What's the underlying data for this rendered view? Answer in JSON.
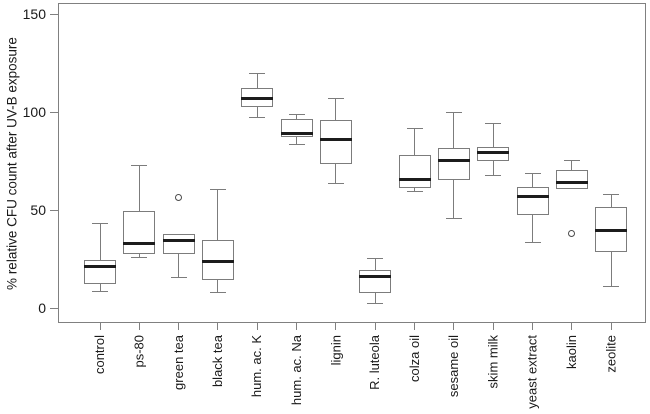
{
  "chart_data": {
    "type": "boxplot",
    "title": "",
    "xlabel": "",
    "ylabel": "% relative CFU count after UV-B exposure",
    "ylim": [
      -7.5,
      156
    ],
    "yticks": [
      0,
      50,
      100,
      150
    ],
    "grid": false,
    "legend": "none",
    "categories": [
      "control",
      "ps-80",
      "green tea",
      "black tea",
      "hum. ac. K",
      "hum. ac. Na",
      "lignin",
      "R. luteola",
      "colza oil",
      "sesame oil",
      "skim milk",
      "yeast extract",
      "kaolin",
      "zeolite"
    ],
    "boxes": [
      {
        "label": "control",
        "whislo": 8.5,
        "q1": 12.5,
        "median": 21.5,
        "q3": 24.5,
        "whishi": 43.5,
        "outliers": []
      },
      {
        "label": "ps-80",
        "whislo": 26,
        "q1": 28,
        "median": 33,
        "q3": 49.5,
        "whishi": 73,
        "outliers": []
      },
      {
        "label": "green tea",
        "whislo": 15.5,
        "q1": 28,
        "median": 34.5,
        "q3": 38,
        "whishi": 38,
        "outliers": [
          56.5
        ]
      },
      {
        "label": "black tea",
        "whislo": 8,
        "q1": 14.5,
        "median": 24,
        "q3": 35,
        "whishi": 61,
        "outliers": []
      },
      {
        "label": "hum. ac. K",
        "whislo": 97.5,
        "q1": 103,
        "median": 107.5,
        "q3": 112.5,
        "whishi": 120,
        "outliers": []
      },
      {
        "label": "hum. ac. Na",
        "whislo": 84,
        "q1": 87.5,
        "median": 89.5,
        "q3": 97,
        "whishi": 99,
        "outliers": []
      },
      {
        "label": "lignin",
        "whislo": 64,
        "q1": 74,
        "median": 86.5,
        "q3": 96.5,
        "whishi": 107.5,
        "outliers": []
      },
      {
        "label": "R. luteola",
        "whislo": 2.5,
        "q1": 8,
        "median": 16.5,
        "q3": 19.5,
        "whishi": 25.5,
        "outliers": []
      },
      {
        "label": "colza oil",
        "whislo": 59.5,
        "q1": 61.5,
        "median": 66,
        "q3": 78.5,
        "whishi": 92,
        "outliers": []
      },
      {
        "label": "sesame oil",
        "whislo": 46,
        "q1": 65.5,
        "median": 75.5,
        "q3": 82,
        "whishi": 100,
        "outliers": []
      },
      {
        "label": "skim milk",
        "whislo": 68,
        "q1": 75.5,
        "median": 79.5,
        "q3": 82.5,
        "whishi": 94.5,
        "outliers": []
      },
      {
        "label": "yeast extract",
        "whislo": 33.5,
        "q1": 47.5,
        "median": 57,
        "q3": 62,
        "whishi": 69,
        "outliers": []
      },
      {
        "label": "kaolin",
        "whislo": 61,
        "q1": 61,
        "median": 64.5,
        "q3": 70.5,
        "whishi": 75.5,
        "outliers": [
          38.5
        ]
      },
      {
        "label": "zeolite",
        "whislo": 11,
        "q1": 29,
        "median": 40,
        "q3": 52,
        "whishi": 58,
        "outliers": []
      }
    ],
    "colors": {
      "axis": "#808080",
      "box_border": "#7c7c7c",
      "median": "#1c1c1c",
      "text": "#1a1a1a",
      "outlier": "#4c4c4c",
      "background": "#ffffff"
    }
  }
}
